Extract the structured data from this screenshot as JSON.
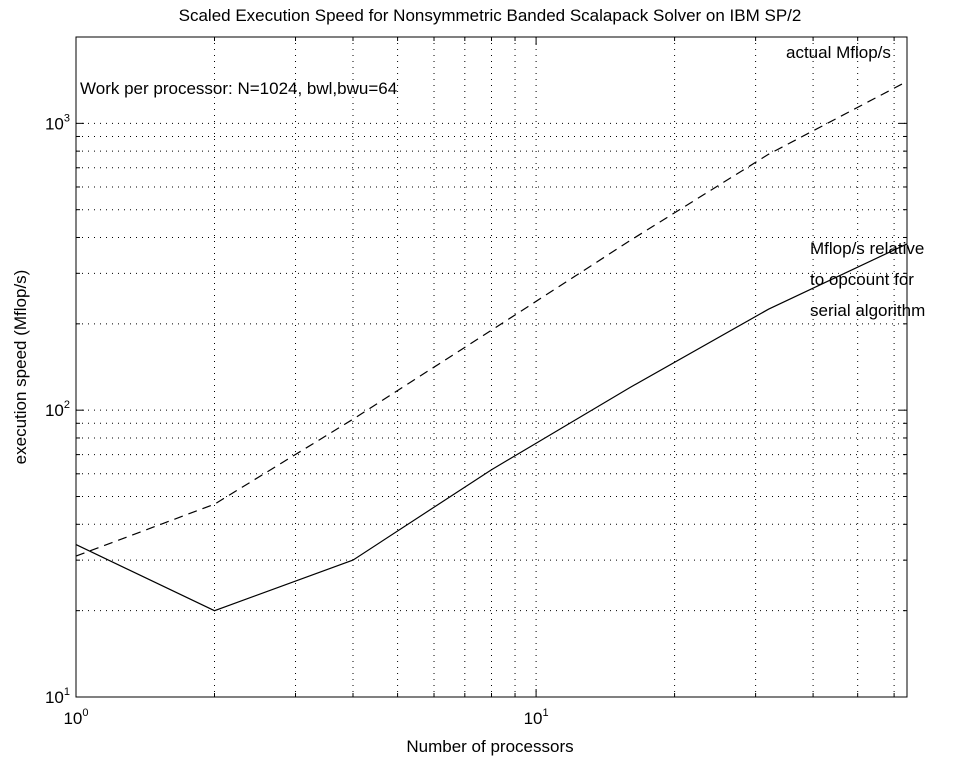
{
  "chart_data": {
    "type": "line",
    "title": "Scaled Execution Speed for Nonsymmetric Banded Scalapack Solver on IBM SP/2",
    "xlabel": "Number of processors",
    "ylabel": "execution speed (Mflop/s)",
    "xscale": "log",
    "yscale": "log",
    "xlim": [
      1,
      64
    ],
    "ylim": [
      10,
      2000
    ],
    "grid": true,
    "x_ticks": [
      {
        "base": "10",
        "exp": "0",
        "value": 1
      },
      {
        "base": "10",
        "exp": "1",
        "value": 10
      }
    ],
    "y_ticks": [
      {
        "base": "10",
        "exp": "1",
        "value": 10
      },
      {
        "base": "10",
        "exp": "2",
        "value": 100
      },
      {
        "base": "10",
        "exp": "3",
        "value": 1000
      }
    ],
    "series": [
      {
        "style": "dashed",
        "x": [
          1,
          2,
          4,
          8,
          16,
          32,
          64
        ],
        "y": [
          31,
          47,
          93,
          190,
          390,
          780,
          1400
        ]
      },
      {
        "style": "solid",
        "x": [
          1,
          2,
          4,
          8,
          16,
          32,
          64
        ],
        "y": [
          34,
          20,
          30,
          62,
          120,
          225,
          380
        ]
      }
    ],
    "annotations": [
      {
        "lines": [
          "Work per processor: N=1024, bwl,bwu=64"
        ]
      },
      {
        "lines": [
          "actual Mflop/s"
        ]
      },
      {
        "lines": [
          "Mflop/s relative",
          "to opcount for",
          "serial algorithm"
        ]
      }
    ]
  }
}
